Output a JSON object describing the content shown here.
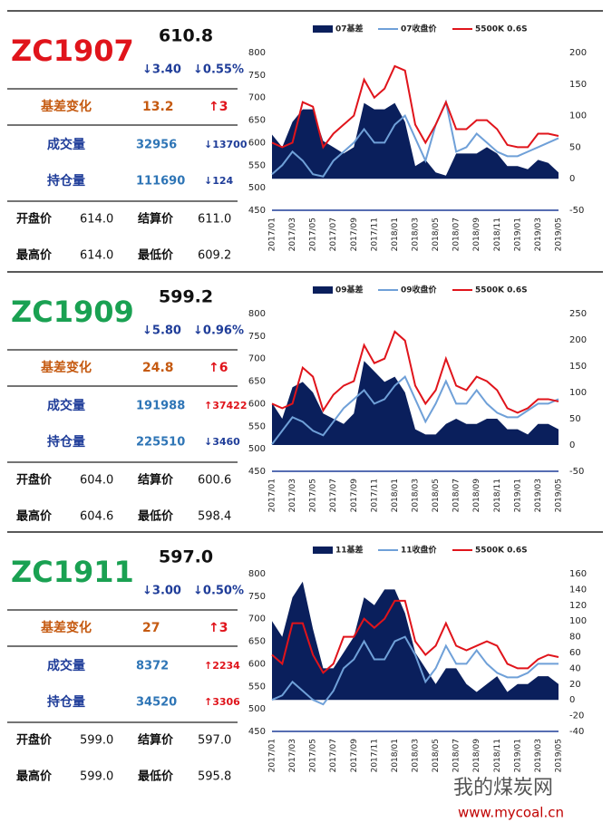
{
  "panels": [
    {
      "code": "ZC1907",
      "price": "610.8",
      "change": "↓3.40",
      "change_pct": "↓0.55%",
      "basis": {
        "label": "基差变化",
        "value": "13.2",
        "change": "↑3"
      },
      "volume": {
        "label": "成交量",
        "value": "32956",
        "change": "↓13700"
      },
      "open_interest": {
        "label": "持仓量",
        "value": "111690",
        "change": "↓124"
      },
      "stats": [
        [
          "开盘价",
          "614.0",
          "结算价",
          "611.0"
        ],
        [
          "最高价",
          "614.0",
          "最低价",
          "609.2"
        ]
      ]
    },
    {
      "code": "ZC1909",
      "price": "599.2",
      "change": "↓5.80",
      "change_pct": "↓0.96%",
      "basis": {
        "label": "基差变化",
        "value": "24.8",
        "change": "↑6"
      },
      "volume": {
        "label": "成交量",
        "value": "191988",
        "change": "↑37422"
      },
      "open_interest": {
        "label": "持仓量",
        "value": "225510",
        "change": "↓3460"
      },
      "stats": [
        [
          "开盘价",
          "604.0",
          "结算价",
          "600.6"
        ],
        [
          "最高价",
          "604.6",
          "最低价",
          "598.4"
        ]
      ]
    },
    {
      "code": "ZC1911",
      "price": "597.0",
      "change": "↓3.00",
      "change_pct": "↓0.50%",
      "basis": {
        "label": "基差变化",
        "value": "27",
        "change": "↑3"
      },
      "volume": {
        "label": "成交量",
        "value": "8372",
        "change": "↑2234"
      },
      "open_interest": {
        "label": "持仓量",
        "value": "34520",
        "change": "↑3306"
      },
      "stats": [
        [
          "开盘价",
          "599.0",
          "结算价",
          "597.0"
        ],
        [
          "最高价",
          "599.0",
          "最低价",
          "595.8"
        ]
      ]
    }
  ],
  "chart_data": [
    {
      "type": "combo",
      "categories": [
        "2017/01",
        null,
        "2017/03",
        null,
        "2017/05",
        null,
        "2017/07",
        null,
        "2017/09",
        null,
        "2017/11",
        null,
        "2018/01",
        null,
        "2018/03",
        null,
        "2018/05",
        null,
        "2018/07",
        null,
        "2018/09",
        null,
        "2018/11",
        null,
        "2019/01",
        null,
        "2019/03",
        null,
        "2019/05"
      ],
      "ylim": [
        450,
        800
      ],
      "yticks": [
        450,
        500,
        550,
        600,
        650,
        700,
        750,
        800
      ],
      "y2lim": [
        -50,
        200
      ],
      "y2ticks": [
        -50,
        0,
        50,
        100,
        150,
        200
      ],
      "series": [
        {
          "name": "07基差",
          "color": "#0a1f5c",
          "kind": "area",
          "axis": "y2",
          "values": [
            70,
            50,
            90,
            110,
            110,
            60,
            50,
            40,
            50,
            120,
            110,
            110,
            120,
            90,
            20,
            30,
            10,
            5,
            40,
            40,
            40,
            50,
            40,
            20,
            20,
            15,
            30,
            25,
            10
          ]
        },
        {
          "name": "07收盘价",
          "color": "#6fa0d8",
          "kind": "line",
          "values": [
            530,
            550,
            580,
            560,
            530,
            525,
            560,
            580,
            600,
            630,
            600,
            600,
            640,
            660,
            610,
            560,
            640,
            690,
            580,
            590,
            620,
            600,
            580,
            570,
            570,
            580,
            590,
            600,
            610
          ]
        },
        {
          "name": "5500K 0.6S",
          "color": "#e0141b",
          "kind": "line",
          "values": [
            600,
            590,
            600,
            690,
            680,
            590,
            620,
            640,
            660,
            740,
            700,
            720,
            770,
            760,
            640,
            600,
            640,
            690,
            630,
            630,
            650,
            650,
            630,
            595,
            590,
            590,
            620,
            620,
            615
          ]
        }
      ]
    },
    {
      "type": "combo",
      "categories": [
        "2017/01",
        null,
        "2017/03",
        null,
        "2017/05",
        null,
        "2017/07",
        null,
        "2017/09",
        null,
        "2017/11",
        null,
        "2018/01",
        null,
        "2018/03",
        null,
        "2018/05",
        null,
        "2018/07",
        null,
        "2018/09",
        null,
        "2018/11",
        null,
        "2019/01",
        null,
        "2019/03",
        null,
        "2019/05"
      ],
      "ylim": [
        450,
        800
      ],
      "yticks": [
        450,
        500,
        550,
        600,
        650,
        700,
        750,
        800
      ],
      "y2lim": [
        -50,
        250
      ],
      "y2ticks": [
        -50,
        0,
        50,
        100,
        150,
        200,
        250
      ],
      "series": [
        {
          "name": "09基差",
          "color": "#0a1f5c",
          "kind": "area",
          "axis": "y2",
          "values": [
            80,
            50,
            110,
            120,
            100,
            60,
            50,
            40,
            60,
            160,
            140,
            120,
            130,
            100,
            30,
            20,
            20,
            40,
            50,
            40,
            40,
            50,
            50,
            30,
            30,
            20,
            40,
            40,
            30
          ]
        },
        {
          "name": "09收盘价",
          "color": "#6fa0d8",
          "kind": "line",
          "values": [
            510,
            540,
            570,
            560,
            540,
            530,
            560,
            590,
            610,
            630,
            600,
            610,
            640,
            660,
            610,
            560,
            600,
            650,
            600,
            600,
            630,
            600,
            580,
            570,
            570,
            585,
            600,
            600,
            610
          ]
        },
        {
          "name": "5500K 0.6S",
          "color": "#e0141b",
          "kind": "line",
          "values": [
            600,
            590,
            600,
            680,
            660,
            585,
            620,
            640,
            650,
            730,
            690,
            700,
            760,
            740,
            640,
            600,
            630,
            700,
            640,
            630,
            660,
            650,
            630,
            590,
            580,
            590,
            610,
            610,
            605
          ]
        }
      ]
    },
    {
      "type": "combo",
      "categories": [
        "2017/01",
        null,
        "2017/03",
        null,
        "2017/05",
        null,
        "2017/07",
        null,
        "2017/09",
        null,
        "2017/11",
        null,
        "2018/01",
        null,
        "2018/03",
        null,
        "2018/05",
        null,
        "2018/07",
        null,
        "2018/09",
        null,
        "2018/11",
        null,
        "2019/01",
        null,
        "2019/03",
        null,
        "2019/05"
      ],
      "ylim": [
        450,
        800
      ],
      "yticks": [
        450,
        500,
        550,
        600,
        650,
        700,
        750,
        800
      ],
      "y2lim": [
        -40,
        160
      ],
      "y2ticks": [
        -40,
        -20,
        0,
        20,
        40,
        60,
        80,
        100,
        120,
        140,
        160
      ],
      "series": [
        {
          "name": "11基差",
          "color": "#0a1f5c",
          "kind": "area",
          "axis": "y2",
          "values": [
            100,
            80,
            130,
            150,
            90,
            40,
            40,
            60,
            80,
            130,
            120,
            140,
            140,
            110,
            60,
            40,
            20,
            40,
            40,
            20,
            10,
            20,
            30,
            10,
            20,
            20,
            30,
            30,
            20
          ]
        },
        {
          "name": "11收盘价",
          "color": "#6fa0d8",
          "kind": "line",
          "values": [
            520,
            530,
            560,
            540,
            520,
            510,
            540,
            590,
            610,
            650,
            610,
            610,
            650,
            660,
            620,
            560,
            590,
            640,
            600,
            600,
            630,
            600,
            580,
            570,
            570,
            580,
            600,
            600,
            600
          ]
        },
        {
          "name": "5500K 0.6S",
          "color": "#e0141b",
          "kind": "line",
          "values": [
            620,
            600,
            690,
            690,
            620,
            580,
            600,
            660,
            660,
            700,
            680,
            700,
            740,
            740,
            650,
            620,
            640,
            690,
            640,
            630,
            640,
            650,
            640,
            600,
            590,
            590,
            610,
            620,
            615
          ]
        }
      ]
    }
  ],
  "footer": {
    "brand": "我的煤炭网",
    "url": "www.mycoal.cn"
  }
}
